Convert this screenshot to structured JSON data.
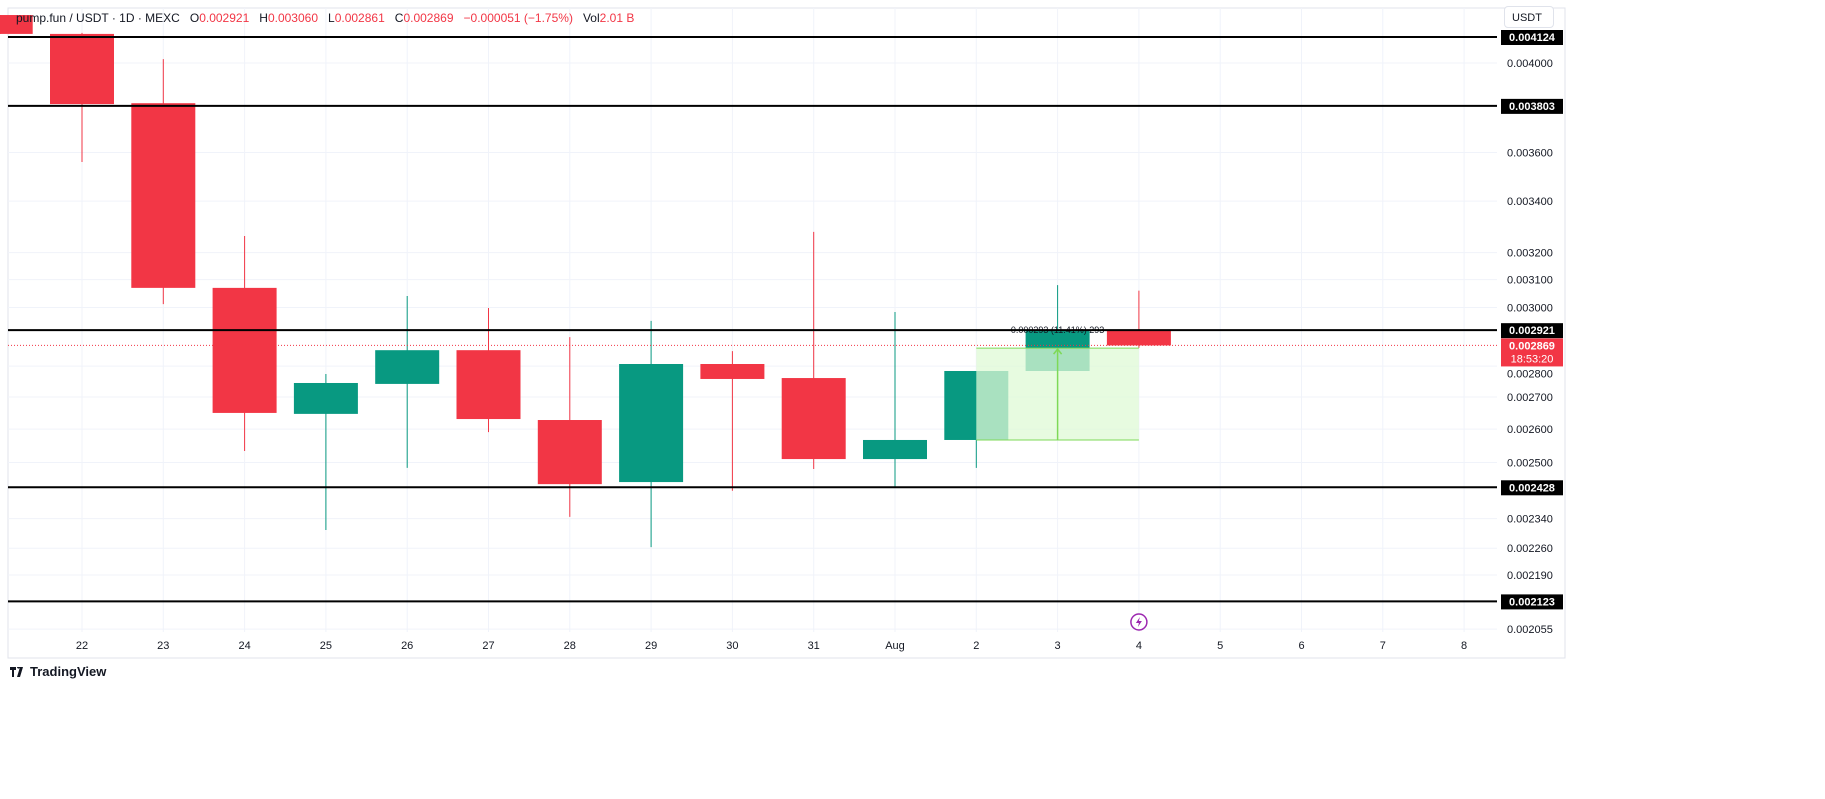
{
  "legend": {
    "symbol": "pump.fun / USDT · 1D · MEXC",
    "o_label": "O",
    "o": "0.002921",
    "h_label": "H",
    "h": "0.003060",
    "l_label": "L",
    "l": "0.002861",
    "c_label": "C",
    "c": "0.002869",
    "change": "−0.000051 (−1.75%)",
    "vol_label": "Vol",
    "vol": "2.01 B"
  },
  "currency_button": "USDT",
  "branding": "TradingView",
  "colors": {
    "up": "#089981",
    "down": "#F23645",
    "level_line": "#000000",
    "measure_fill": "#dff9d6",
    "measure_line": "#7ed957",
    "alert_icon": "#9c27b0"
  },
  "chart_data": {
    "type": "candlestick",
    "scale": "log",
    "ylim": [
      0.00202,
      0.00425
    ],
    "grid": true,
    "x_tick_labels": [
      "22",
      "23",
      "24",
      "25",
      "26",
      "27",
      "28",
      "29",
      "30",
      "31",
      "Aug",
      "2",
      "3",
      "4",
      "5",
      "6",
      "7",
      "8"
    ],
    "y_tick_labels": [
      "0.004000",
      "0.003600",
      "0.003400",
      "0.003200",
      "0.003100",
      "0.003000",
      "0.002800",
      "0.002700",
      "0.002600",
      "0.002500",
      "0.002340",
      "0.002260",
      "0.002190",
      "0.002055"
    ],
    "candles": [
      {
        "date": "21",
        "o": 0.004232,
        "h": 0.004232,
        "l": 0.004139,
        "c": 0.004139
      },
      {
        "date": "22",
        "o": 0.004139,
        "h": 0.004144,
        "l": 0.00356,
        "c": 0.003811
      },
      {
        "date": "23",
        "o": 0.003815,
        "h": 0.004018,
        "l": 0.003012,
        "c": 0.00307
      },
      {
        "date": "24",
        "o": 0.00307,
        "h": 0.003263,
        "l": 0.002534,
        "c": 0.00265
      },
      {
        "date": "25",
        "o": 0.002647,
        "h": 0.002774,
        "l": 0.002309,
        "c": 0.002745
      },
      {
        "date": "26",
        "o": 0.002742,
        "h": 0.003041,
        "l": 0.002484,
        "c": 0.002853
      },
      {
        "date": "27",
        "o": 0.002853,
        "h": 0.002998,
        "l": 0.002591,
        "c": 0.002631
      },
      {
        "date": "28",
        "o": 0.002628,
        "h": 0.002897,
        "l": 0.002345,
        "c": 0.002437
      },
      {
        "date": "29",
        "o": 0.002443,
        "h": 0.002953,
        "l": 0.002263,
        "c": 0.002807
      },
      {
        "date": "30",
        "o": 0.002807,
        "h": 0.00285,
        "l": 0.002418,
        "c": 0.002758
      },
      {
        "date": "31",
        "o": 0.002761,
        "h": 0.003279,
        "l": 0.002481,
        "c": 0.00251
      },
      {
        "date": "Aug",
        "o": 0.00251,
        "h": 0.002984,
        "l": 0.002428,
        "c": 0.002567
      },
      {
        "date": "2",
        "o": 0.002567,
        "h": 0.002784,
        "l": 0.002484,
        "c": 0.002784
      },
      {
        "date": "3",
        "o": 0.002784,
        "h": 0.00308,
        "l": 0.002784,
        "c": 0.002918
      },
      {
        "date": "4",
        "o": 0.002921,
        "h": 0.00306,
        "l": 0.002861,
        "c": 0.002869
      }
    ],
    "horizontal_levels": [
      {
        "value": 0.004124,
        "label": "0.004124"
      },
      {
        "value": 0.003803,
        "label": "0.003803"
      },
      {
        "value": 0.002921,
        "label": "0.002921"
      },
      {
        "value": 0.002428,
        "label": "0.002428"
      },
      {
        "value": 0.002123,
        "label": "0.002123"
      }
    ],
    "current_price": {
      "value": 0.002869,
      "label": "0.002869",
      "countdown": "18:53:20"
    },
    "measure": {
      "from_date": "2",
      "to_date": "4",
      "low": 0.002567,
      "high": 0.00286,
      "label": "0.000293 (11.41%) 293"
    }
  }
}
